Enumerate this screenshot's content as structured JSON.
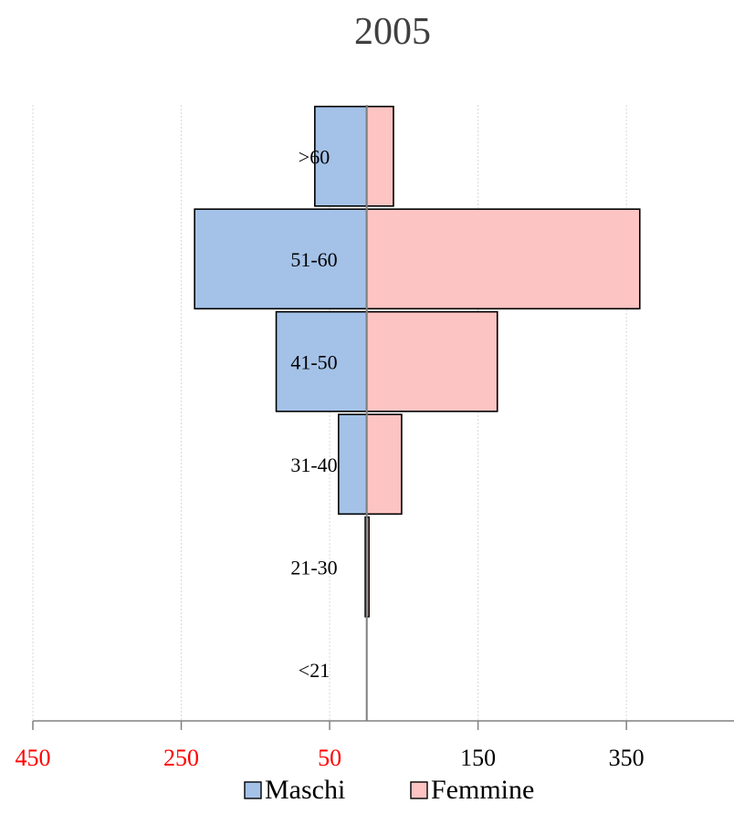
{
  "chart_data": {
    "type": "bar",
    "orientation": "horizontal-diverging",
    "title": "2005",
    "xlabel": "",
    "ylabel": "",
    "categories": [
      "<21",
      "21-30",
      "31-40",
      "41-50",
      "51-60",
      ">60"
    ],
    "series": [
      {
        "name": "Maschi",
        "values": [
          0,
          2,
          38,
          122,
          232,
          70
        ],
        "color": "#a4c2e8",
        "direction": "left"
      },
      {
        "name": "Femmine",
        "values": [
          0,
          3,
          47,
          176,
          368,
          36
        ],
        "color": "#fcc4c3",
        "direction": "right"
      }
    ],
    "x_ticks": [
      {
        "label": "450",
        "value": -450,
        "color": "#ff0000"
      },
      {
        "label": "250",
        "value": -250,
        "color": "#ff0000"
      },
      {
        "label": "50",
        "value": -50,
        "color": "#ff0000"
      },
      {
        "label": "150",
        "value": 150,
        "color": "#000000"
      },
      {
        "label": "350",
        "value": 350,
        "color": "#000000"
      }
    ],
    "xlim": [
      -450,
      495
    ],
    "grid": true,
    "legend": "bottom"
  }
}
